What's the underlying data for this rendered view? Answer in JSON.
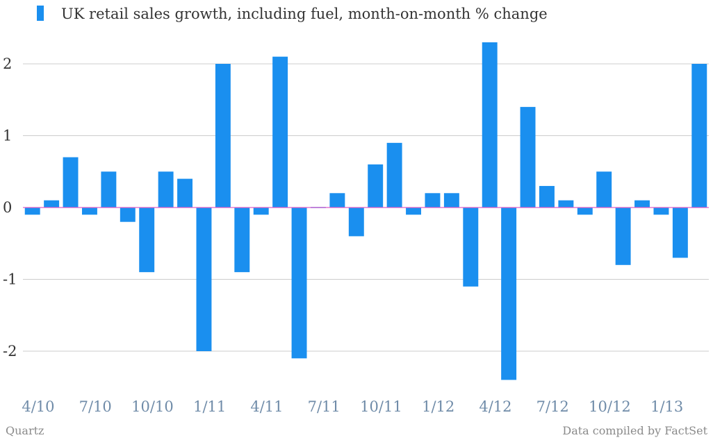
{
  "chart_data": {
    "type": "bar",
    "series": [
      {
        "name": "UK retail sales growth, including fuel, month-on-month % change",
        "color": "#1a8fef",
        "values": [
          -0.1,
          0.1,
          0.7,
          -0.1,
          0.5,
          -0.2,
          -0.9,
          0.5,
          0.4,
          -2.0,
          2.0,
          -0.9,
          -0.1,
          2.1,
          -2.1,
          0.0,
          0.2,
          -0.4,
          0.6,
          0.9,
          -0.1,
          0.2,
          0.2,
          -1.1,
          2.3,
          -2.4,
          1.4,
          0.3,
          0.1,
          -0.1,
          0.5,
          -0.8,
          0.1,
          -0.1,
          -0.7,
          2.0
        ]
      }
    ],
    "x_tick_labels": [
      {
        "label": "4/10",
        "index": 0
      },
      {
        "label": "7/10",
        "index": 3
      },
      {
        "label": "10/10",
        "index": 6
      },
      {
        "label": "1/11",
        "index": 9
      },
      {
        "label": "4/11",
        "index": 12
      },
      {
        "label": "7/11",
        "index": 15
      },
      {
        "label": "10/11",
        "index": 18
      },
      {
        "label": "1/12",
        "index": 21
      },
      {
        "label": "4/12",
        "index": 24
      },
      {
        "label": "7/12",
        "index": 27
      },
      {
        "label": "10/12",
        "index": 30
      },
      {
        "label": "1/13",
        "index": 33
      }
    ],
    "y_ticks": [
      2,
      1,
      0,
      -1,
      -2
    ],
    "ylim": [
      -2.6,
      2.6
    ],
    "grid": true,
    "legend_position": "top-left",
    "zero_line_color": "#e05cc8"
  },
  "footer": {
    "source_left": "Quartz",
    "source_right": "Data compiled by FactSet"
  }
}
